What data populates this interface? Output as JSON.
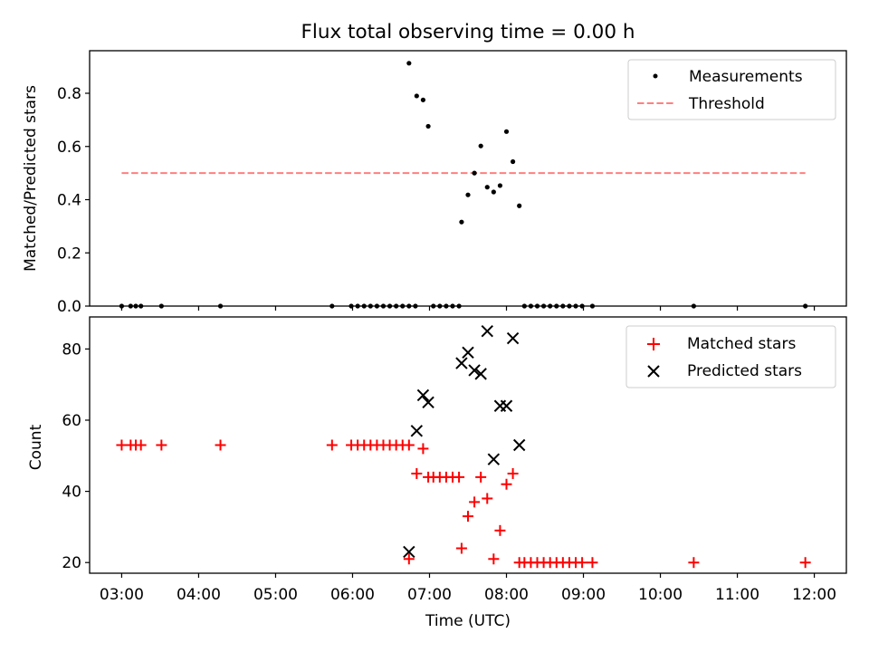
{
  "figure": {
    "title": "Flux total observing time = 0.00 h"
  },
  "colors": {
    "matched": "#ff0000",
    "predicted": "#000000",
    "measurement": "#000000",
    "threshold": "#ff7f7f"
  },
  "chart_data": [
    {
      "type": "scatter",
      "title": "Flux total observing time = 0.00 h",
      "xlabel": "",
      "ylabel": "Matched/Predicted stars",
      "xlim": [
        "02:35",
        "12:25"
      ],
      "ylim": [
        0,
        0.96
      ],
      "yticks": [
        0.0,
        0.2,
        0.4,
        0.6,
        0.8
      ],
      "ytick_labels": [
        "0.0",
        "0.2",
        "0.4",
        "0.6",
        "0.8"
      ],
      "legend_position": "top-right",
      "series": [
        {
          "name": "Measurements",
          "marker": "dot",
          "points": [
            [
              "03:00",
              0.0
            ],
            [
              "03:07",
              0.0
            ],
            [
              "03:11",
              0.0
            ],
            [
              "03:15",
              0.0
            ],
            [
              "03:31",
              0.0
            ],
            [
              "04:17",
              0.0
            ],
            [
              "05:44",
              0.0
            ],
            [
              "05:59",
              0.0
            ],
            [
              "06:04",
              0.0
            ],
            [
              "06:09",
              0.0
            ],
            [
              "06:14",
              0.0
            ],
            [
              "06:19",
              0.0
            ],
            [
              "06:24",
              0.0
            ],
            [
              "06:29",
              0.0
            ],
            [
              "06:34",
              0.0
            ],
            [
              "06:39",
              0.0
            ],
            [
              "06:44",
              0.0
            ],
            [
              "06:49",
              0.0
            ],
            [
              "06:44",
              0.913
            ],
            [
              "06:50",
              0.79
            ],
            [
              "06:55",
              0.775
            ],
            [
              "06:59",
              0.676
            ],
            [
              "07:03",
              0.0
            ],
            [
              "07:08",
              0.0
            ],
            [
              "07:13",
              0.0
            ],
            [
              "07:18",
              0.0
            ],
            [
              "07:23",
              0.0
            ],
            [
              "07:25",
              0.316
            ],
            [
              "07:30",
              0.418
            ],
            [
              "07:35",
              0.5
            ],
            [
              "07:40",
              0.602
            ],
            [
              "07:45",
              0.447
            ],
            [
              "07:50",
              0.429
            ],
            [
              "07:55",
              0.453
            ],
            [
              "08:00",
              0.656
            ],
            [
              "08:05",
              0.543
            ],
            [
              "08:10",
              0.377
            ],
            [
              "08:14",
              0.0
            ],
            [
              "08:19",
              0.0
            ],
            [
              "08:24",
              0.0
            ],
            [
              "08:29",
              0.0
            ],
            [
              "08:34",
              0.0
            ],
            [
              "08:39",
              0.0
            ],
            [
              "08:44",
              0.0
            ],
            [
              "08:49",
              0.0
            ],
            [
              "08:54",
              0.0
            ],
            [
              "08:59",
              0.0
            ],
            [
              "09:07",
              0.0
            ],
            [
              "10:26",
              0.0
            ],
            [
              "11:53",
              0.0
            ]
          ]
        },
        {
          "name": "Threshold",
          "style": "dashed",
          "points": [
            [
              "03:00",
              0.5
            ],
            [
              "11:53",
              0.5
            ]
          ]
        }
      ]
    },
    {
      "type": "scatter",
      "title": "",
      "xlabel": "Time (UTC)",
      "ylabel": "Count",
      "xlim": [
        "02:35",
        "12:25"
      ],
      "ylim": [
        17,
        89
      ],
      "yticks": [
        20,
        40,
        60,
        80
      ],
      "ytick_labels": [
        "20",
        "40",
        "60",
        "80"
      ],
      "xticks": [
        "03:00",
        "04:00",
        "05:00",
        "06:00",
        "07:00",
        "08:00",
        "09:00",
        "10:00",
        "11:00",
        "12:00"
      ],
      "legend_position": "top-right",
      "series": [
        {
          "name": "Matched stars",
          "marker": "plus",
          "points": [
            [
              "03:00",
              53
            ],
            [
              "03:07",
              53
            ],
            [
              "03:11",
              53
            ],
            [
              "03:15",
              53
            ],
            [
              "03:31",
              53
            ],
            [
              "04:17",
              53
            ],
            [
              "05:44",
              53
            ],
            [
              "05:59",
              53
            ],
            [
              "06:04",
              53
            ],
            [
              "06:09",
              53
            ],
            [
              "06:14",
              53
            ],
            [
              "06:19",
              53
            ],
            [
              "06:24",
              53
            ],
            [
              "06:29",
              53
            ],
            [
              "06:34",
              53
            ],
            [
              "06:39",
              53
            ],
            [
              "06:44",
              53
            ],
            [
              "06:44",
              21
            ],
            [
              "06:50",
              45
            ],
            [
              "06:55",
              52
            ],
            [
              "06:59",
              44
            ],
            [
              "07:03",
              44
            ],
            [
              "07:08",
              44
            ],
            [
              "07:13",
              44
            ],
            [
              "07:18",
              44
            ],
            [
              "07:23",
              44
            ],
            [
              "07:25",
              24
            ],
            [
              "07:30",
              33
            ],
            [
              "07:35",
              37
            ],
            [
              "07:40",
              44
            ],
            [
              "07:45",
              38
            ],
            [
              "07:50",
              21
            ],
            [
              "07:55",
              29
            ],
            [
              "08:00",
              42
            ],
            [
              "08:05",
              45
            ],
            [
              "08:10",
              20
            ],
            [
              "08:14",
              20
            ],
            [
              "08:19",
              20
            ],
            [
              "08:24",
              20
            ],
            [
              "08:29",
              20
            ],
            [
              "08:34",
              20
            ],
            [
              "08:39",
              20
            ],
            [
              "08:44",
              20
            ],
            [
              "08:49",
              20
            ],
            [
              "08:54",
              20
            ],
            [
              "08:59",
              20
            ],
            [
              "09:07",
              20
            ],
            [
              "10:26",
              20
            ],
            [
              "11:53",
              20
            ]
          ]
        },
        {
          "name": "Predicted stars",
          "marker": "x",
          "points": [
            [
              "06:44",
              23
            ],
            [
              "06:50",
              57
            ],
            [
              "06:55",
              67
            ],
            [
              "06:59",
              65
            ],
            [
              "07:25",
              76
            ],
            [
              "07:30",
              79
            ],
            [
              "07:35",
              74
            ],
            [
              "07:40",
              73
            ],
            [
              "07:45",
              85
            ],
            [
              "07:50",
              49
            ],
            [
              "07:55",
              64
            ],
            [
              "08:00",
              64
            ],
            [
              "08:05",
              83
            ],
            [
              "08:10",
              53
            ]
          ]
        }
      ]
    }
  ]
}
